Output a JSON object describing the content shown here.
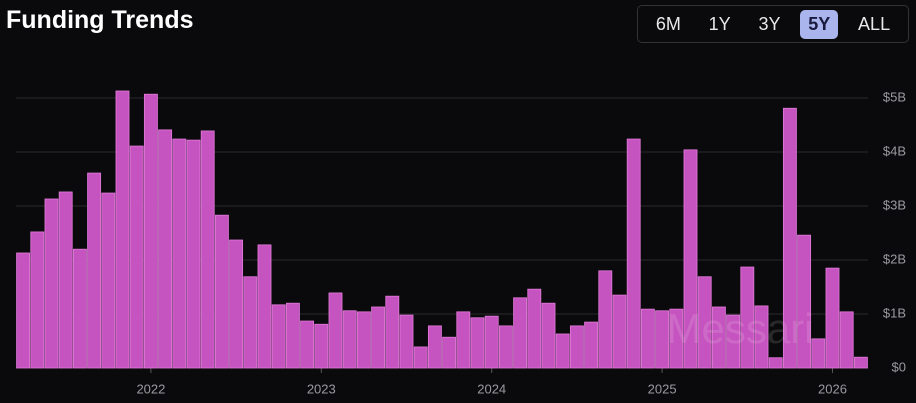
{
  "chart_data": {
    "type": "bar",
    "title": "Funding Trends",
    "range_options": [
      "6M",
      "1Y",
      "3Y",
      "5Y",
      "ALL"
    ],
    "selected_range": "5Y",
    "watermark": "Messari",
    "color": "#c654c0",
    "categories": [
      null,
      null,
      null,
      null,
      null,
      null,
      null,
      null,
      null,
      null,
      null,
      null,
      null,
      null,
      null,
      null,
      null,
      null,
      null,
      null,
      null,
      null,
      null,
      null,
      null,
      null,
      null,
      null,
      null,
      null,
      null,
      null,
      null,
      null,
      null,
      null,
      null,
      null,
      null,
      null,
      null,
      null,
      null,
      null,
      null,
      null,
      null,
      null,
      null,
      null,
      null,
      null,
      null,
      null,
      null,
      null,
      null,
      null,
      null,
      null
    ],
    "values": [
      2.13,
      2.52,
      3.13,
      3.26,
      2.2,
      3.61,
      3.24,
      5.13,
      4.11,
      5.07,
      4.41,
      4.24,
      4.22,
      4.39,
      2.83,
      2.37,
      1.69,
      2.28,
      1.17,
      1.2,
      0.87,
      0.81,
      1.39,
      1.06,
      1.04,
      1.13,
      1.33,
      0.98,
      0.39,
      0.78,
      0.57,
      1.04,
      0.93,
      0.96,
      0.78,
      1.3,
      1.46,
      1.2,
      0.63,
      0.78,
      0.85,
      1.8,
      1.35,
      4.24,
      1.09,
      1.06,
      1.09,
      4.04,
      1.69,
      1.13,
      0.98,
      1.87,
      1.15,
      0.19,
      4.81,
      2.46,
      0.54,
      1.85,
      1.04,
      0.2
    ],
    "xlim": [
      -0.5,
      59.5
    ],
    "xticks": [
      {
        "value": 9,
        "label": "2022"
      },
      {
        "value": 21,
        "label": "2023"
      },
      {
        "value": 33,
        "label": "2024"
      },
      {
        "value": 45,
        "label": "2025"
      },
      {
        "value": 57,
        "label": "2026"
      }
    ],
    "ylim": [
      0,
      5.5
    ],
    "yticks": [
      {
        "value": 0,
        "label": "$0"
      },
      {
        "value": 1,
        "label": "$1B"
      },
      {
        "value": 2,
        "label": "$2B"
      },
      {
        "value": 3,
        "label": "$3B"
      },
      {
        "value": 4,
        "label": "$4B"
      },
      {
        "value": 5,
        "label": "$5B"
      }
    ],
    "grid": true
  }
}
